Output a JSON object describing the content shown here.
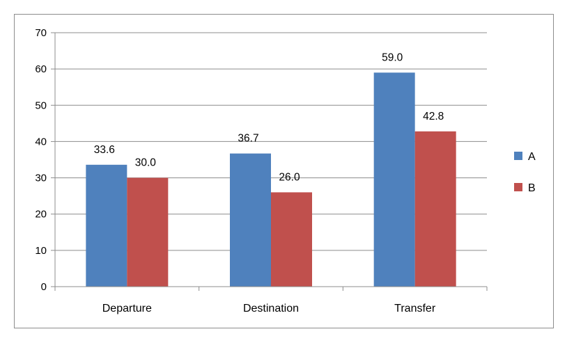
{
  "chart_data": {
    "type": "bar",
    "categories": [
      "Departure",
      "Destination",
      "Transfer"
    ],
    "series": [
      {
        "name": "A",
        "values": [
          33.6,
          36.7,
          59.0
        ],
        "labels": [
          "33.6",
          "36.7",
          "59.0"
        ],
        "color": "#4f81bd"
      },
      {
        "name": "B",
        "values": [
          30.0,
          26.0,
          42.8
        ],
        "labels": [
          "30.0",
          "26.0",
          "42.8"
        ],
        "color": "#c0504d"
      }
    ],
    "ylim": [
      0,
      70
    ],
    "yticks": [
      "0",
      "10",
      "20",
      "30",
      "40",
      "50",
      "60",
      "70"
    ],
    "grid": true,
    "legend": "right"
  }
}
